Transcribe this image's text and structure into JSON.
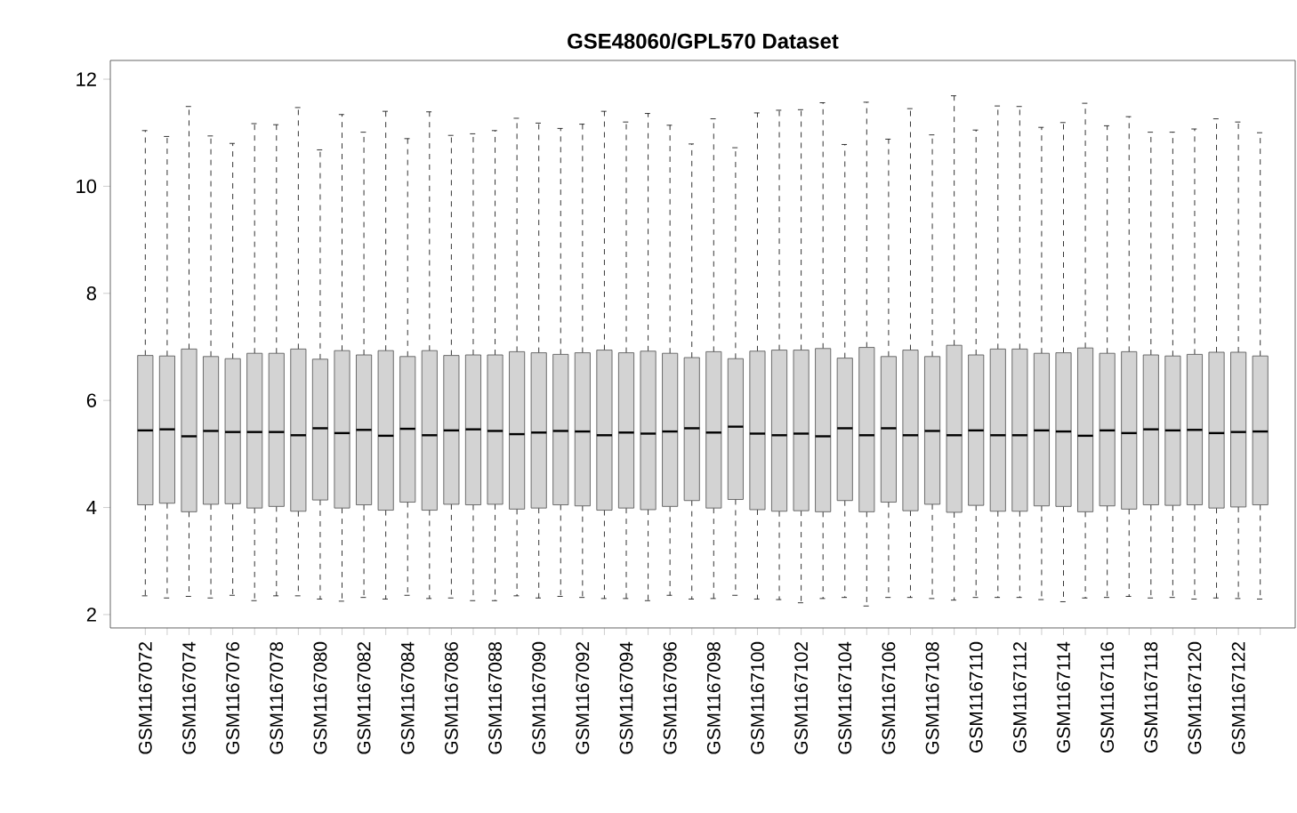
{
  "chart_data": {
    "type": "box",
    "title": "GSE48060/GPL570 Dataset",
    "color": "#d3d3d3",
    "categories": [
      "GSM1167072",
      null,
      "GSM1167074",
      null,
      "GSM1167076",
      null,
      "GSM1167078",
      null,
      "GSM1167080",
      null,
      "GSM1167082",
      null,
      "GSM1167084",
      null,
      "GSM1167086",
      null,
      "GSM1167088",
      null,
      "GSM1167090",
      null,
      "GSM1167092",
      null,
      "GSM1167094",
      null,
      "GSM1167096",
      null,
      "GSM1167098",
      null,
      "GSM1167100",
      null,
      "GSM1167102",
      null,
      "GSM1167104",
      null,
      "GSM1167106",
      null,
      "GSM1167108",
      null,
      "GSM1167110",
      null,
      "GSM1167112",
      null,
      "GSM1167114",
      null,
      "GSM1167116",
      null,
      "GSM1167118",
      null,
      "GSM1167120",
      null,
      "GSM1167122",
      null
    ],
    "ylim": [
      1.75,
      12.35
    ],
    "yticks": [
      2,
      4,
      6,
      8,
      10,
      12
    ],
    "grid": false,
    "boxes": [
      {
        "low": 2.35,
        "q1": 4.05,
        "median": 5.44,
        "q3": 6.84,
        "high": 11.04
      },
      {
        "low": 2.31,
        "q1": 4.08,
        "median": 5.46,
        "q3": 6.83,
        "high": 10.93
      },
      {
        "low": 2.34,
        "q1": 3.92,
        "median": 5.33,
        "q3": 6.96,
        "high": 11.49
      },
      {
        "low": 2.31,
        "q1": 4.06,
        "median": 5.43,
        "q3": 6.82,
        "high": 10.94
      },
      {
        "low": 2.36,
        "q1": 4.07,
        "median": 5.41,
        "q3": 6.78,
        "high": 10.8
      },
      {
        "low": 2.26,
        "q1": 3.99,
        "median": 5.41,
        "q3": 6.88,
        "high": 11.17
      },
      {
        "low": 2.35,
        "q1": 4.02,
        "median": 5.41,
        "q3": 6.88,
        "high": 11.15
      },
      {
        "low": 2.35,
        "q1": 3.93,
        "median": 5.35,
        "q3": 6.96,
        "high": 11.47
      },
      {
        "low": 2.29,
        "q1": 4.14,
        "median": 5.48,
        "q3": 6.77,
        "high": 10.68
      },
      {
        "low": 2.25,
        "q1": 3.99,
        "median": 5.39,
        "q3": 6.93,
        "high": 11.34
      },
      {
        "low": 2.32,
        "q1": 4.05,
        "median": 5.45,
        "q3": 6.85,
        "high": 11.01
      },
      {
        "low": 2.29,
        "q1": 3.95,
        "median": 5.34,
        "q3": 6.93,
        "high": 11.4
      },
      {
        "low": 2.36,
        "q1": 4.1,
        "median": 5.47,
        "q3": 6.82,
        "high": 10.89
      },
      {
        "low": 2.3,
        "q1": 3.95,
        "median": 5.35,
        "q3": 6.93,
        "high": 11.39
      },
      {
        "low": 2.31,
        "q1": 4.06,
        "median": 5.44,
        "q3": 6.84,
        "high": 10.95
      },
      {
        "low": 2.26,
        "q1": 4.05,
        "median": 5.46,
        "q3": 6.85,
        "high": 10.98
      },
      {
        "low": 2.26,
        "q1": 4.06,
        "median": 5.43,
        "q3": 6.85,
        "high": 11.04
      },
      {
        "low": 2.35,
        "q1": 3.97,
        "median": 5.37,
        "q3": 6.91,
        "high": 11.27
      },
      {
        "low": 2.31,
        "q1": 3.99,
        "median": 5.4,
        "q3": 6.89,
        "high": 11.18
      },
      {
        "low": 2.34,
        "q1": 4.05,
        "median": 5.43,
        "q3": 6.86,
        "high": 11.08
      },
      {
        "low": 2.32,
        "q1": 4.03,
        "median": 5.42,
        "q3": 6.89,
        "high": 11.16
      },
      {
        "low": 2.3,
        "q1": 3.95,
        "median": 5.35,
        "q3": 6.94,
        "high": 11.4
      },
      {
        "low": 2.3,
        "q1": 3.99,
        "median": 5.4,
        "q3": 6.89,
        "high": 11.2
      },
      {
        "low": 2.26,
        "q1": 3.96,
        "median": 5.38,
        "q3": 6.92,
        "high": 11.36
      },
      {
        "low": 2.36,
        "q1": 4.02,
        "median": 5.42,
        "q3": 6.88,
        "high": 11.14
      },
      {
        "low": 2.29,
        "q1": 4.13,
        "median": 5.48,
        "q3": 6.8,
        "high": 10.79
      },
      {
        "low": 2.3,
        "q1": 3.99,
        "median": 5.4,
        "q3": 6.91,
        "high": 11.26
      },
      {
        "low": 2.36,
        "q1": 4.15,
        "median": 5.51,
        "q3": 6.78,
        "high": 10.72
      },
      {
        "low": 2.29,
        "q1": 3.96,
        "median": 5.38,
        "q3": 6.92,
        "high": 11.37
      },
      {
        "low": 2.28,
        "q1": 3.93,
        "median": 5.35,
        "q3": 6.94,
        "high": 11.42
      },
      {
        "low": 2.22,
        "q1": 3.94,
        "median": 5.38,
        "q3": 6.94,
        "high": 11.43
      },
      {
        "low": 2.3,
        "q1": 3.92,
        "median": 5.33,
        "q3": 6.97,
        "high": 11.56
      },
      {
        "low": 2.32,
        "q1": 4.13,
        "median": 5.48,
        "q3": 6.79,
        "high": 10.78
      },
      {
        "low": 2.16,
        "q1": 3.92,
        "median": 5.35,
        "q3": 6.99,
        "high": 11.57
      },
      {
        "low": 2.32,
        "q1": 4.1,
        "median": 5.48,
        "q3": 6.82,
        "high": 10.88
      },
      {
        "low": 2.32,
        "q1": 3.94,
        "median": 5.35,
        "q3": 6.94,
        "high": 11.45
      },
      {
        "low": 2.3,
        "q1": 4.06,
        "median": 5.43,
        "q3": 6.82,
        "high": 10.96
      },
      {
        "low": 2.27,
        "q1": 3.91,
        "median": 5.35,
        "q3": 7.03,
        "high": 11.69
      },
      {
        "low": 2.32,
        "q1": 4.04,
        "median": 5.44,
        "q3": 6.85,
        "high": 11.05
      },
      {
        "low": 2.32,
        "q1": 3.93,
        "median": 5.35,
        "q3": 6.96,
        "high": 11.5
      },
      {
        "low": 2.32,
        "q1": 3.93,
        "median": 5.35,
        "q3": 6.96,
        "high": 11.49
      },
      {
        "low": 2.28,
        "q1": 4.03,
        "median": 5.44,
        "q3": 6.88,
        "high": 11.1
      },
      {
        "low": 2.24,
        "q1": 4.02,
        "median": 5.42,
        "q3": 6.89,
        "high": 11.19
      },
      {
        "low": 2.31,
        "q1": 3.92,
        "median": 5.34,
        "q3": 6.98,
        "high": 11.55
      },
      {
        "low": 2.32,
        "q1": 4.03,
        "median": 5.44,
        "q3": 6.88,
        "high": 11.13
      },
      {
        "low": 2.34,
        "q1": 3.97,
        "median": 5.39,
        "q3": 6.91,
        "high": 11.3
      },
      {
        "low": 2.31,
        "q1": 4.05,
        "median": 5.46,
        "q3": 6.85,
        "high": 11.01
      },
      {
        "low": 2.32,
        "q1": 4.04,
        "median": 5.44,
        "q3": 6.83,
        "high": 11.01
      },
      {
        "low": 2.29,
        "q1": 4.05,
        "median": 5.45,
        "q3": 6.86,
        "high": 11.07
      },
      {
        "low": 2.31,
        "q1": 3.99,
        "median": 5.39,
        "q3": 6.9,
        "high": 11.26
      },
      {
        "low": 2.3,
        "q1": 4.01,
        "median": 5.41,
        "q3": 6.9,
        "high": 11.2
      },
      {
        "low": 2.29,
        "q1": 4.05,
        "median": 5.42,
        "q3": 6.83,
        "high": 11.0
      }
    ]
  }
}
